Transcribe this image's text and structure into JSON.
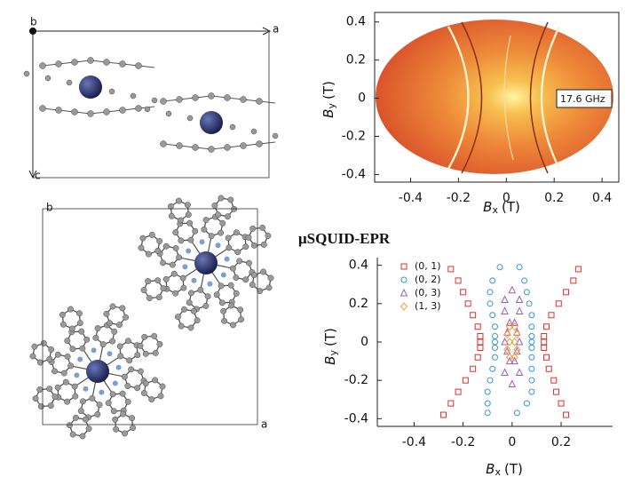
{
  "crystal_top": {
    "axis_a": "a",
    "axis_b": "b",
    "axis_c": "c"
  },
  "crystal_bottom": {
    "axis_b": "b",
    "axis_a": "a"
  },
  "figure_title": "μSQUID-EPR",
  "chart_data": [
    {
      "type": "image",
      "annotation": "17.6 GHz",
      "xlabel_symbol": "B",
      "xlabel_sub": "x",
      "xlabel_unit": "(T)",
      "ylabel_symbol": "B",
      "ylabel_sub": "y",
      "ylabel_unit": "(T)",
      "xlim": [
        -0.55,
        0.47
      ],
      "ylim": [
        -0.44,
        0.45
      ],
      "xticks": [
        -0.4,
        -0.2,
        0,
        0.2,
        0.4
      ],
      "yticks": [
        -0.4,
        -0.2,
        0,
        0.2,
        0.4
      ]
    },
    {
      "type": "scatter",
      "legend": "upper left",
      "xlabel_symbol": "B",
      "xlabel_sub": "x",
      "xlabel_unit": "(T)",
      "ylabel_symbol": "B",
      "ylabel_sub": "y",
      "ylabel_unit": "(T)",
      "xlim": [
        -0.55,
        0.41
      ],
      "ylim": [
        -0.44,
        0.44
      ],
      "xticks": [
        -0.4,
        -0.2,
        0,
        0.2
      ],
      "yticks": [
        -0.4,
        -0.2,
        0,
        0.2,
        0.4
      ],
      "series": [
        {
          "name": "(0, 1)",
          "color": "#e0302c",
          "marker": "square",
          "x": [
            -0.28,
            -0.25,
            -0.22,
            -0.19,
            -0.16,
            -0.14,
            -0.13,
            -0.13,
            -0.13,
            -0.14,
            -0.16,
            -0.18,
            -0.2,
            -0.22,
            -0.25,
            0.22,
            0.2,
            0.18,
            0.17,
            0.15,
            0.14,
            0.13,
            0.13,
            0.13,
            0.14,
            0.16,
            0.19,
            0.22,
            0.25,
            0.27
          ],
          "y": [
            -0.38,
            -0.32,
            -0.26,
            -0.2,
            -0.14,
            -0.08,
            -0.03,
            0,
            0.03,
            0.08,
            0.14,
            0.2,
            0.26,
            0.32,
            0.38,
            -0.38,
            -0.32,
            -0.26,
            -0.2,
            -0.14,
            -0.08,
            -0.03,
            0,
            0.03,
            0.08,
            0.14,
            0.2,
            0.26,
            0.32,
            0.38
          ]
        },
        {
          "name": "(0, 2)",
          "color": "#3a96cc",
          "marker": "circle",
          "x": [
            -0.1,
            -0.1,
            -0.1,
            -0.09,
            -0.08,
            -0.07,
            -0.07,
            -0.07,
            -0.07,
            -0.07,
            -0.08,
            -0.09,
            -0.09,
            -0.08,
            -0.05,
            0.02,
            0.06,
            0.08,
            0.08,
            0.08,
            0.08,
            0.08,
            0.08,
            0.08,
            0.08,
            0.08,
            0.07,
            0.06,
            0.05,
            0.03
          ],
          "y": [
            -0.37,
            -0.32,
            -0.26,
            -0.2,
            -0.14,
            -0.08,
            -0.03,
            0,
            0.03,
            0.08,
            0.14,
            0.2,
            0.26,
            0.32,
            0.39,
            -0.37,
            -0.32,
            -0.26,
            -0.2,
            -0.14,
            -0.08,
            -0.03,
            0,
            0.03,
            0.08,
            0.14,
            0.2,
            0.26,
            0.32,
            0.39
          ]
        },
        {
          "name": "(0, 3)",
          "color": "#9a5cc0",
          "marker": "triangle",
          "x": [
            0,
            -0.03,
            -0.01,
            -0.02,
            -0.03,
            -0.02,
            -0.01,
            -0.03,
            -0.03,
            0,
            0.03,
            0.01,
            0.02,
            0.03,
            0.02,
            0.01,
            0.03,
            0.03
          ],
          "y": [
            -0.22,
            -0.16,
            -0.1,
            -0.05,
            0,
            0.05,
            0.1,
            0.16,
            0.22,
            0.27,
            -0.16,
            -0.1,
            -0.05,
            0,
            0.05,
            0.1,
            0.16,
            0.22
          ]
        },
        {
          "name": "(1, 3)",
          "color": "#f0a030",
          "marker": "diamond",
          "x": [
            -0.01,
            -0.02,
            -0.01,
            -0.02,
            -0.01,
            0.01,
            0.02,
            0.01,
            0.02,
            0.01
          ],
          "y": [
            -0.08,
            -0.04,
            0,
            0.04,
            0.08,
            -0.08,
            -0.04,
            0,
            0.04,
            0.08
          ]
        }
      ]
    }
  ]
}
